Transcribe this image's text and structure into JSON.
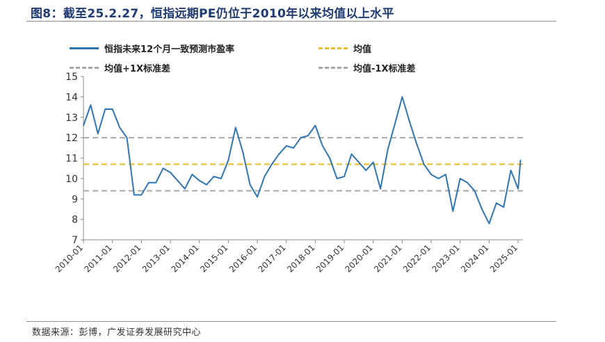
{
  "figure": {
    "title": "图8：截至25.2.27，恒指远期PE仍位于2010年以来均值以上水平",
    "source": "数据来源：彭博，广发证券发展研究中心"
  },
  "legend": {
    "pe": "恒指未来12个月一致预测市盈率",
    "mean": "均值",
    "plus": "均值+1X标准差",
    "minus": "均值-1X标准差"
  },
  "colors": {
    "pe_line": "#2e75b6",
    "mean_line": "#e8c032",
    "band_line": "#a8a8a8"
  },
  "chart_data": {
    "type": "line",
    "title": "图8：截至25.2.27，恒指远期PE仍位于2010年以来均值以上水平",
    "xlabel": "",
    "ylabel": "",
    "ylim": [
      7,
      15
    ],
    "y_ticks": [
      7,
      8,
      9,
      10,
      11,
      12,
      13,
      14,
      15
    ],
    "x_ticks": [
      "2010-01",
      "2011-01",
      "2012-01",
      "2013-01",
      "2014-01",
      "2015-01",
      "2016-01",
      "2017-01",
      "2018-01",
      "2019-01",
      "2020-01",
      "2021-01",
      "2022-01",
      "2023-01",
      "2024-01",
      "2025-01"
    ],
    "grid": false,
    "legend_position": "top",
    "series": [
      {
        "name": "恒指未来12个月一致预测市盈率",
        "x": [
          "2010-01",
          "2010-04",
          "2010-07",
          "2010-10",
          "2011-01",
          "2011-04",
          "2011-07",
          "2011-10",
          "2012-01",
          "2012-04",
          "2012-07",
          "2012-10",
          "2013-01",
          "2013-04",
          "2013-07",
          "2013-10",
          "2014-01",
          "2014-04",
          "2014-07",
          "2014-10",
          "2015-01",
          "2015-04",
          "2015-07",
          "2015-10",
          "2016-01",
          "2016-04",
          "2016-07",
          "2016-10",
          "2017-01",
          "2017-04",
          "2017-07",
          "2017-10",
          "2018-01",
          "2018-04",
          "2018-07",
          "2018-10",
          "2019-01",
          "2019-04",
          "2019-07",
          "2019-10",
          "2020-01",
          "2020-04",
          "2020-07",
          "2020-10",
          "2021-01",
          "2021-04",
          "2021-07",
          "2021-10",
          "2022-01",
          "2022-04",
          "2022-07",
          "2022-10",
          "2023-01",
          "2023-04",
          "2023-07",
          "2023-10",
          "2024-01",
          "2024-04",
          "2024-07",
          "2024-10",
          "2025-01",
          "2025-02"
        ],
        "values": [
          12.6,
          13.6,
          12.2,
          13.4,
          13.4,
          12.5,
          12.0,
          9.2,
          9.2,
          9.8,
          9.8,
          10.5,
          10.3,
          9.9,
          9.5,
          10.2,
          9.9,
          9.7,
          10.1,
          10.0,
          10.9,
          12.5,
          11.3,
          9.7,
          9.1,
          10.1,
          10.7,
          11.2,
          11.6,
          11.5,
          12.0,
          12.1,
          12.6,
          11.6,
          11.0,
          10.0,
          10.1,
          11.2,
          10.8,
          10.4,
          10.8,
          9.5,
          11.4,
          12.7,
          14.0,
          12.8,
          11.7,
          10.7,
          10.2,
          10.0,
          10.2,
          8.4,
          10.0,
          9.8,
          9.4,
          8.5,
          7.8,
          8.8,
          8.6,
          10.4,
          9.5,
          10.9
        ]
      },
      {
        "name": "均值",
        "values": [
          10.7
        ]
      },
      {
        "name": "均值+1X标准差",
        "values": [
          12.0
        ]
      },
      {
        "name": "均值-1X标准差",
        "values": [
          9.4
        ]
      }
    ]
  }
}
